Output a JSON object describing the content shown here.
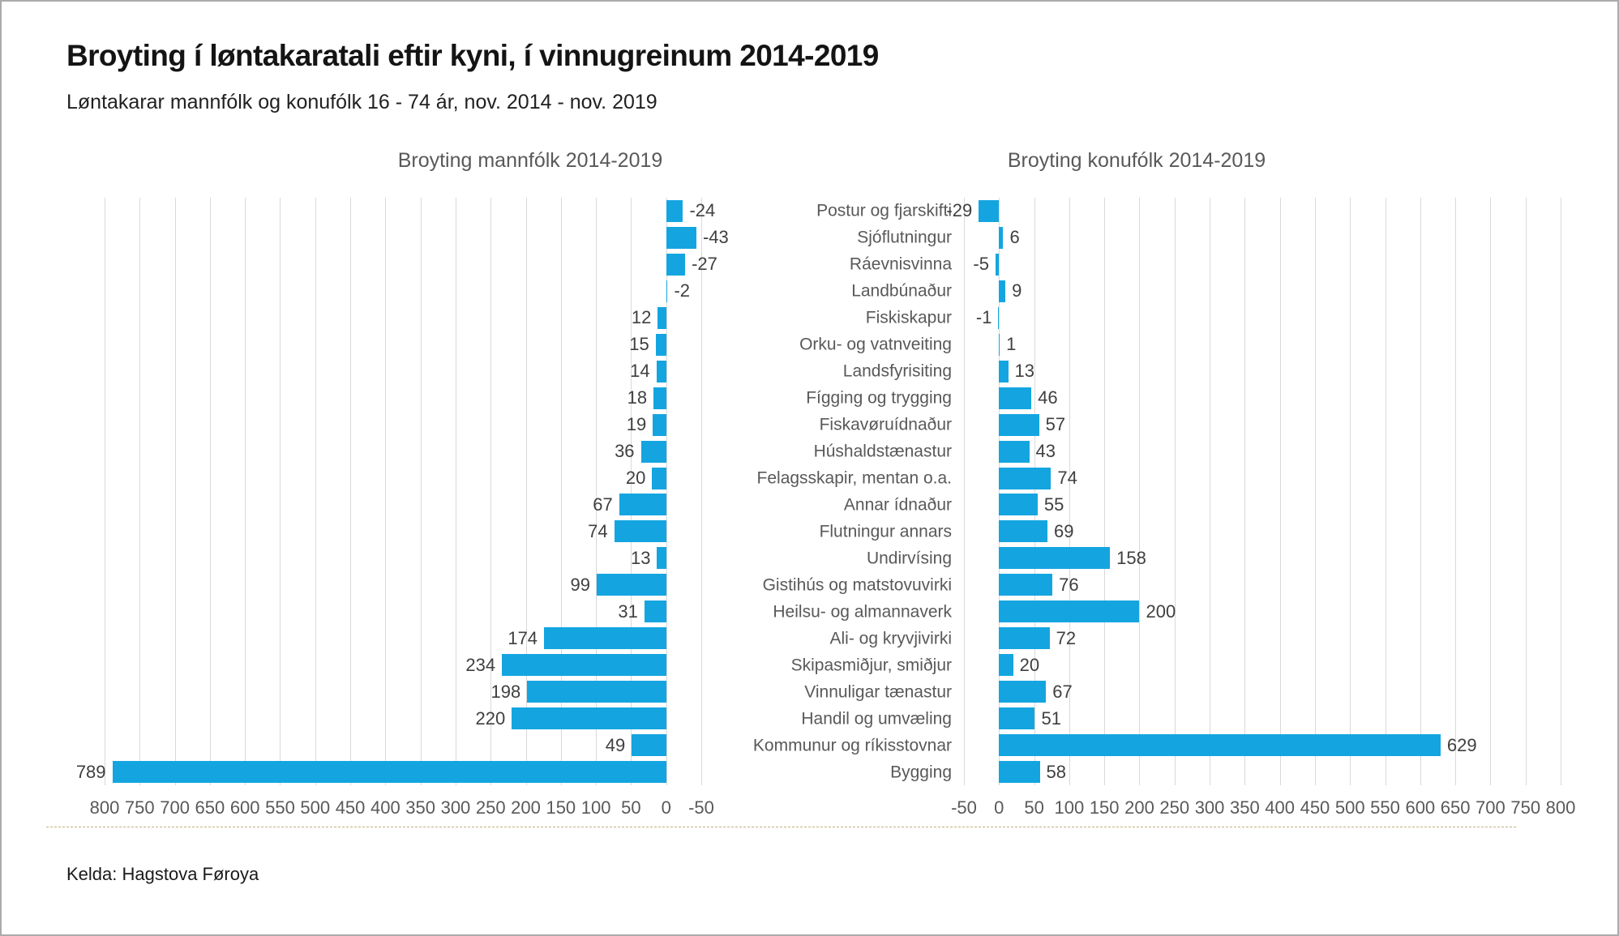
{
  "header": {
    "title": "Broyting í løntakaratali eftir kyni, í vinnugreinum 2014-2019",
    "subtitle": "Løntakarar mannfólk og konufólk 16 - 74 ár, nov. 2014 - nov. 2019"
  },
  "chart_data": {
    "type": "bar",
    "orientation": "horizontal",
    "bar_color": "#14a5e1",
    "grid": true,
    "axis": {
      "min": -50,
      "max": 800,
      "step": 50
    },
    "categories": [
      "Postur og fjarskifti",
      "Sjóflutningur",
      "Ráevnisvinna",
      "Landbúnaður",
      "Fiskiskapur",
      "Orku- og vatnveiting",
      "Landsfyrisiting",
      "Fígging og trygging",
      "Fiskavøruídnaður",
      "Húshaldstænastur",
      "Felagsskapir, mentan o.a.",
      "Annar ídnaður",
      "Flutningur annars",
      "Undirvísing",
      "Gistihús og matstovuvirki",
      "Heilsu- og almannaverk",
      "Ali- og kryvjivirki",
      "Skipasmiðjur, smiðjur",
      "Vinnuligar tænastur",
      "Handil og umvæling",
      "Kommunur og ríkisstovnar",
      "Bygging"
    ],
    "series": [
      {
        "name": "mannfólk",
        "panel": "left",
        "values": [
          -24,
          -43,
          -27,
          -2,
          12,
          15,
          14,
          18,
          19,
          36,
          20,
          67,
          74,
          13,
          99,
          31,
          174,
          234,
          198,
          220,
          49,
          789
        ]
      },
      {
        "name": "konufólk",
        "panel": "right",
        "values": [
          -29,
          6,
          -5,
          9,
          -1,
          1,
          13,
          46,
          57,
          43,
          74,
          55,
          69,
          158,
          76,
          200,
          72,
          20,
          67,
          51,
          629,
          58
        ]
      }
    ],
    "panels": [
      {
        "title": "Broyting mannfólk 2014-2019",
        "axis_reversed": true,
        "ticks": [
          800,
          750,
          700,
          650,
          600,
          550,
          500,
          450,
          400,
          350,
          300,
          250,
          200,
          150,
          100,
          50,
          0,
          -50
        ]
      },
      {
        "title": "Broyting konufólk 2014-2019",
        "axis_reversed": false,
        "ticks": [
          -50,
          0,
          50,
          100,
          150,
          200,
          250,
          300,
          350,
          400,
          450,
          500,
          550,
          600,
          650,
          700,
          750,
          800
        ]
      }
    ]
  },
  "footer": {
    "source": "Kelda: Hagstova Føroya"
  }
}
